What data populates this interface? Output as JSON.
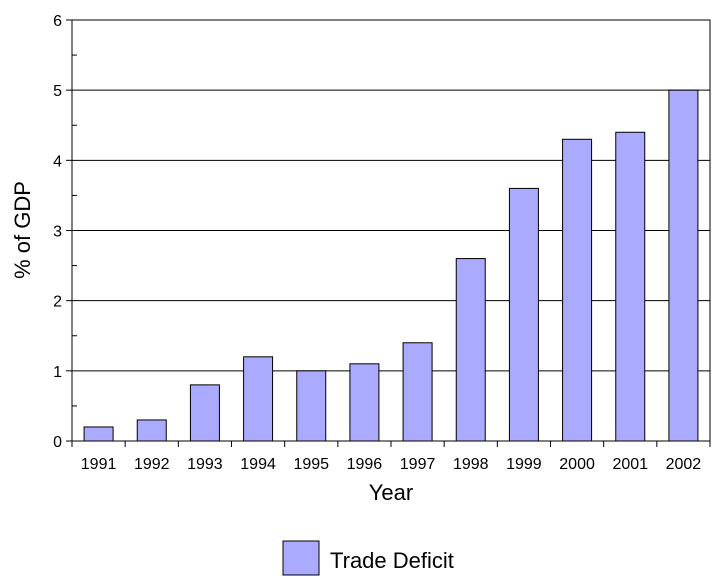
{
  "chart_data": {
    "type": "bar",
    "title": "",
    "xlabel": "Year",
    "ylabel": "% of GDP",
    "ylim": [
      0,
      6
    ],
    "yticks": [
      0,
      1,
      2,
      3,
      4,
      5,
      6
    ],
    "grid": true,
    "legend_position": "bottom",
    "categories": [
      "1991",
      "1992",
      "1993",
      "1994",
      "1995",
      "1996",
      "1997",
      "1998",
      "1999",
      "2000",
      "2001",
      "2002"
    ],
    "series": [
      {
        "name": "Trade Deficit",
        "color": "#aaaaff",
        "values": [
          0.2,
          0.3,
          0.8,
          1.2,
          1.0,
          1.1,
          1.4,
          2.6,
          3.6,
          4.3,
          4.4,
          5.0
        ]
      }
    ]
  }
}
